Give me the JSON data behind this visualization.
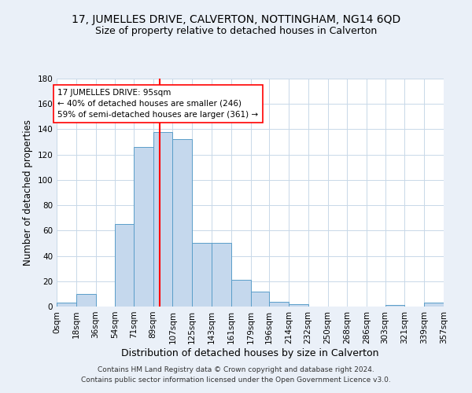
{
  "title1": "17, JUMELLES DRIVE, CALVERTON, NOTTINGHAM, NG14 6QD",
  "title2": "Size of property relative to detached houses in Calverton",
  "xlabel": "Distribution of detached houses by size in Calverton",
  "ylabel": "Number of detached properties",
  "footer1": "Contains HM Land Registry data © Crown copyright and database right 2024.",
  "footer2": "Contains public sector information licensed under the Open Government Licence v3.0.",
  "bin_edges": [
    0,
    18,
    36,
    54,
    71,
    89,
    107,
    125,
    143,
    161,
    179,
    196,
    214,
    232,
    250,
    268,
    286,
    303,
    321,
    339,
    357
  ],
  "bin_labels": [
    "0sqm",
    "18sqm",
    "36sqm",
    "54sqm",
    "71sqm",
    "89sqm",
    "107sqm",
    "125sqm",
    "143sqm",
    "161sqm",
    "179sqm",
    "196sqm",
    "214sqm",
    "232sqm",
    "250sqm",
    "268sqm",
    "286sqm",
    "303sqm",
    "321sqm",
    "339sqm",
    "357sqm"
  ],
  "bar_heights": [
    3,
    10,
    0,
    65,
    126,
    138,
    132,
    50,
    50,
    21,
    12,
    4,
    2,
    0,
    0,
    0,
    0,
    1,
    0,
    3
  ],
  "bar_color": "#c5d8ed",
  "bar_edge_color": "#5a9ec9",
  "vline_x": 95,
  "vline_color": "red",
  "annotation_line1": "17 JUMELLES DRIVE: 95sqm",
  "annotation_line2": "← 40% of detached houses are smaller (246)",
  "annotation_line3": "59% of semi-detached houses are larger (361) →",
  "annotation_box_color": "white",
  "annotation_box_edge": "red",
  "ylim": [
    0,
    180
  ],
  "yticks": [
    0,
    20,
    40,
    60,
    80,
    100,
    120,
    140,
    160,
    180
  ],
  "bg_color": "#eaf0f8",
  "plot_bg_color": "#ffffff",
  "grid_color": "#c8d8e8",
  "title1_fontsize": 10,
  "title2_fontsize": 9,
  "xlabel_fontsize": 9,
  "ylabel_fontsize": 8.5,
  "tick_fontsize": 7.5,
  "annot_fontsize": 7.5,
  "footer_fontsize": 6.5
}
